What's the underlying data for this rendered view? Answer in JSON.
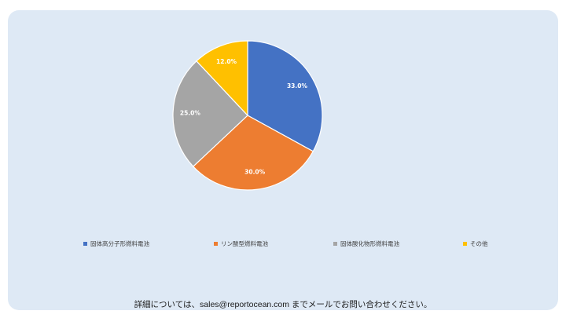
{
  "chart_data": {
    "type": "pie",
    "categories": [
      "固体高分子形燃料電池",
      "リン酸型燃料電池",
      "固体酸化物形燃料電池",
      "その他"
    ],
    "values": [
      33.0,
      30.0,
      25.0,
      12.0
    ],
    "labels": [
      "33.0%",
      "30.0%",
      "25.0%",
      "12.0%"
    ],
    "colors": [
      "#4472c4",
      "#ed7d31",
      "#a5a5a5",
      "#ffc000"
    ],
    "legend_position": "bottom"
  },
  "footer": {
    "text": "詳細については、sales@reportocean.com までメールでお問い合わせください。"
  }
}
